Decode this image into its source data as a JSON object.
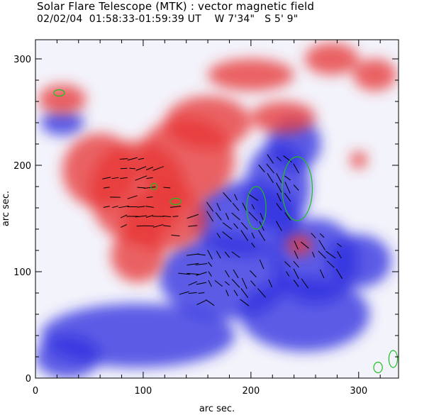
{
  "header": {
    "title": "Solar Flare Telescope (MTK) : vector magnetic field",
    "date": "02/02/04",
    "time_range": "01:58:33-01:59:39 UT",
    "longitude": "W 7'34\"",
    "latitude": "S 5' 9\""
  },
  "chart_data": {
    "type": "heatmap",
    "title": "Solar Flare Telescope (MTK) : vector magnetic field",
    "xlabel": "arc sec.",
    "ylabel": "arc sec.",
    "xlim": [
      0,
      337
    ],
    "ylim": [
      0,
      318
    ],
    "x_ticks": [
      "0",
      "100",
      "200",
      "300"
    ],
    "y_ticks": [
      "0",
      "100",
      "200",
      "300"
    ],
    "colors": {
      "positive": "#e83838",
      "negative": "#2f2fe0",
      "neutral": "#ffffff",
      "contour": "#1fbf1f",
      "vector": "#000000"
    },
    "positive_regions": [
      {
        "x": 25,
        "y": 262,
        "rx": 22,
        "ry": 14
      },
      {
        "x": 95,
        "y": 175,
        "rx": 45,
        "ry": 48
      },
      {
        "x": 120,
        "y": 150,
        "rx": 40,
        "ry": 30
      },
      {
        "x": 60,
        "y": 195,
        "rx": 35,
        "ry": 35
      },
      {
        "x": 160,
        "y": 240,
        "rx": 40,
        "ry": 25
      },
      {
        "x": 230,
        "y": 245,
        "rx": 30,
        "ry": 15
      },
      {
        "x": 275,
        "y": 300,
        "rx": 25,
        "ry": 15
      },
      {
        "x": 200,
        "y": 285,
        "rx": 40,
        "ry": 15
      },
      {
        "x": 140,
        "y": 205,
        "rx": 45,
        "ry": 40
      },
      {
        "x": 95,
        "y": 115,
        "rx": 25,
        "ry": 25
      },
      {
        "x": 315,
        "y": 285,
        "rx": 20,
        "ry": 15
      },
      {
        "x": 245,
        "y": 125,
        "rx": 12,
        "ry": 10
      },
      {
        "x": 300,
        "y": 205,
        "rx": 8,
        "ry": 8
      }
    ],
    "negative_regions": [
      {
        "x": 225,
        "y": 180,
        "rx": 30,
        "ry": 42
      },
      {
        "x": 195,
        "y": 150,
        "rx": 50,
        "ry": 35
      },
      {
        "x": 260,
        "y": 110,
        "rx": 40,
        "ry": 40
      },
      {
        "x": 175,
        "y": 95,
        "rx": 60,
        "ry": 40
      },
      {
        "x": 95,
        "y": 40,
        "rx": 90,
        "ry": 30
      },
      {
        "x": 250,
        "y": 60,
        "rx": 60,
        "ry": 35
      },
      {
        "x": 25,
        "y": 240,
        "rx": 20,
        "ry": 12
      },
      {
        "x": 300,
        "y": 110,
        "rx": 30,
        "ry": 25
      },
      {
        "x": 240,
        "y": 220,
        "rx": 25,
        "ry": 25
      },
      {
        "x": 30,
        "y": 20,
        "rx": 30,
        "ry": 20
      }
    ],
    "contours": [
      {
        "x": 205,
        "y": 160,
        "rx": 9,
        "ry": 20
      },
      {
        "x": 243,
        "y": 178,
        "rx": 14,
        "ry": 30
      },
      {
        "x": 22,
        "y": 268,
        "rx": 5,
        "ry": 3
      },
      {
        "x": 110,
        "y": 180,
        "rx": 3,
        "ry": 3
      },
      {
        "x": 130,
        "y": 166,
        "rx": 5,
        "ry": 3
      },
      {
        "x": 318,
        "y": 10,
        "rx": 4,
        "ry": 5
      },
      {
        "x": 332,
        "y": 18,
        "rx": 4,
        "ry": 8
      }
    ]
  }
}
